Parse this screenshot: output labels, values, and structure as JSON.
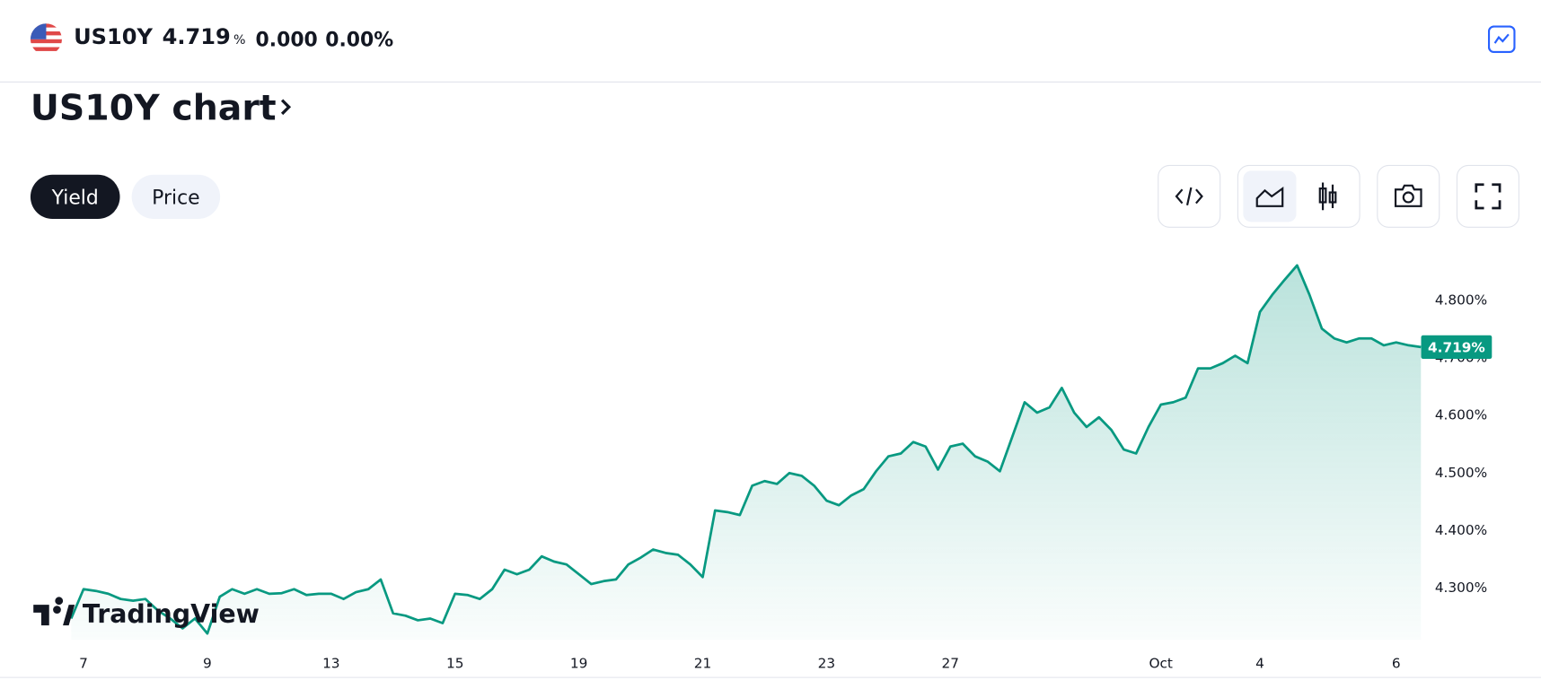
{
  "header": {
    "symbol": "US10Y",
    "price": "4.719",
    "price_unit": "%",
    "change": "0.000",
    "change_percent": "0.00%"
  },
  "section_title": "US10Y chart",
  "tabs": [
    "Yield",
    "Price"
  ],
  "watermark": "TradingView",
  "chart_data": {
    "type": "area",
    "color": "#089981",
    "grid": false,
    "categories": [
      null,
      "7",
      null,
      null,
      null,
      null,
      null,
      null,
      null,
      null,
      null,
      "9",
      null,
      null,
      null,
      null,
      null,
      null,
      null,
      null,
      null,
      "13",
      null,
      null,
      null,
      null,
      null,
      null,
      null,
      null,
      null,
      "15",
      null,
      null,
      null,
      null,
      null,
      null,
      null,
      null,
      null,
      "19",
      null,
      null,
      null,
      null,
      null,
      null,
      null,
      null,
      null,
      "21",
      null,
      null,
      null,
      null,
      null,
      null,
      null,
      null,
      null,
      "23",
      null,
      null,
      null,
      null,
      null,
      null,
      null,
      null,
      null,
      "27",
      null,
      null,
      null,
      null,
      null,
      null,
      null,
      null,
      null,
      null,
      null,
      null,
      null,
      null,
      null,
      null,
      "Oct",
      null,
      null,
      null,
      null,
      null,
      null,
      null,
      "4",
      null,
      null,
      null,
      null,
      null,
      null,
      null,
      null,
      null,
      null,
      "6",
      null,
      null
    ],
    "values": [
      4.247,
      4.298,
      4.295,
      4.29,
      4.281,
      4.278,
      4.281,
      4.261,
      4.247,
      4.23,
      4.247,
      4.221,
      4.285,
      4.298,
      4.29,
      4.298,
      4.29,
      4.291,
      4.298,
      4.288,
      4.29,
      4.29,
      4.281,
      4.293,
      4.298,
      4.315,
      4.256,
      4.252,
      4.244,
      4.247,
      4.239,
      4.29,
      4.288,
      4.281,
      4.298,
      4.332,
      4.324,
      4.332,
      4.355,
      4.346,
      4.341,
      4.324,
      4.307,
      4.312,
      4.315,
      4.341,
      4.353,
      4.367,
      4.361,
      4.358,
      4.341,
      4.319,
      4.435,
      4.432,
      4.427,
      4.478,
      4.486,
      4.481,
      4.5,
      4.495,
      4.478,
      4.452,
      4.444,
      4.461,
      4.472,
      4.503,
      4.529,
      4.534,
      4.554,
      4.546,
      4.506,
      4.546,
      4.551,
      4.529,
      4.52,
      4.503,
      4.563,
      4.623,
      4.605,
      4.614,
      4.648,
      4.605,
      4.58,
      4.597,
      4.575,
      4.541,
      4.534,
      4.58,
      4.619,
      4.623,
      4.631,
      4.682,
      4.682,
      4.691,
      4.704,
      4.691,
      4.78,
      4.81,
      4.836,
      4.861,
      4.81,
      4.751,
      4.734,
      4.727,
      4.734,
      4.734,
      4.722,
      4.727,
      4.722,
      4.719
    ],
    "value_labels": [
      null,
      null,
      null,
      null,
      null,
      null,
      null,
      null,
      null,
      null,
      null,
      null,
      null,
      null,
      null,
      null,
      null,
      null,
      null,
      null,
      null,
      null,
      null,
      null,
      null,
      null,
      null,
      null,
      null,
      null,
      null,
      null,
      null,
      null,
      null,
      null,
      null,
      null,
      null,
      null,
      null,
      null,
      null,
      null,
      null,
      null,
      null,
      null,
      null,
      null,
      null,
      null,
      null,
      null,
      null,
      null,
      null,
      null,
      null,
      null,
      null,
      null,
      null,
      null,
      null,
      null,
      null,
      null,
      null,
      null,
      null,
      null,
      null,
      null,
      null,
      null,
      null,
      null,
      null,
      null,
      null,
      null,
      null,
      null,
      null,
      null,
      null,
      null,
      null,
      null,
      null,
      null,
      null,
      null,
      null,
      null,
      null,
      null,
      null,
      null,
      null,
      null,
      null,
      null,
      null,
      null,
      null,
      null,
      null,
      "4.719%"
    ],
    "ylim": [
      4.21,
      4.89
    ],
    "yticks": [
      {
        "value": 4.3,
        "label": "4.300%"
      },
      {
        "value": 4.4,
        "label": "4.400%"
      },
      {
        "value": 4.5,
        "label": "4.500%"
      },
      {
        "value": 4.6,
        "label": "4.600%"
      },
      {
        "value": 4.7,
        "label": "4.700%"
      },
      {
        "value": 4.8,
        "label": "4.800%"
      }
    ]
  }
}
